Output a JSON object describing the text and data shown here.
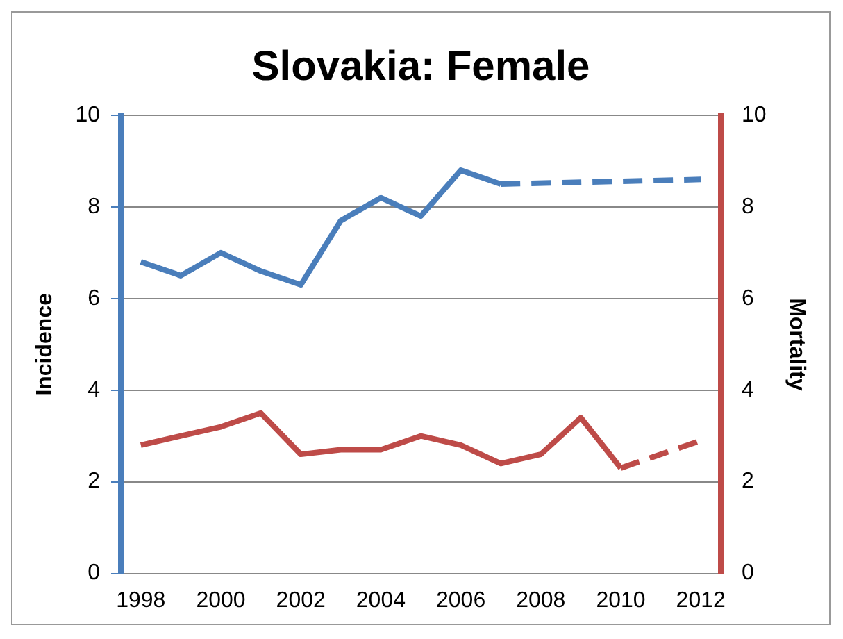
{
  "chart_data": {
    "type": "line",
    "title": "Slovakia: Female",
    "ylabel": "Incidence",
    "y2label": "Mortality",
    "categories": [
      "1998",
      null,
      "2000",
      null,
      "2002",
      null,
      "2004",
      null,
      "2006",
      null,
      "2008",
      null,
      "2010",
      null,
      "2012"
    ],
    "series": [
      {
        "color": "#4a7ebb",
        "line_style": "solid",
        "values": [
          6.8,
          6.5,
          7.0,
          6.6,
          6.3,
          7.7,
          8.2,
          7.8,
          8.8,
          8.5,
          null,
          null,
          null,
          null,
          null
        ]
      },
      {
        "color": "#4a7ebb",
        "line_style": "dashed",
        "values": [
          null,
          null,
          null,
          null,
          null,
          null,
          null,
          null,
          null,
          8.5,
          null,
          null,
          null,
          null,
          8.6
        ]
      },
      {
        "color": "#be4b48",
        "line_style": "solid",
        "axis": "y2",
        "values": [
          2.8,
          3.0,
          3.2,
          3.5,
          2.6,
          2.7,
          2.7,
          3.0,
          2.8,
          2.4,
          2.6,
          3.4,
          2.3,
          null,
          null
        ]
      },
      {
        "color": "#be4b48",
        "line_style": "dashed",
        "axis": "y2",
        "values": [
          null,
          null,
          null,
          null,
          null,
          null,
          null,
          null,
          null,
          null,
          null,
          null,
          2.3,
          null,
          2.9
        ]
      }
    ],
    "ylim": [
      0,
      10
    ],
    "yticks": [
      0,
      2,
      4,
      6,
      8,
      10
    ],
    "y2lim": [
      0,
      10
    ],
    "y2ticks": [
      0,
      2,
      4,
      6,
      8,
      10
    ],
    "grid": "y",
    "legend": false,
    "marker": "none"
  }
}
